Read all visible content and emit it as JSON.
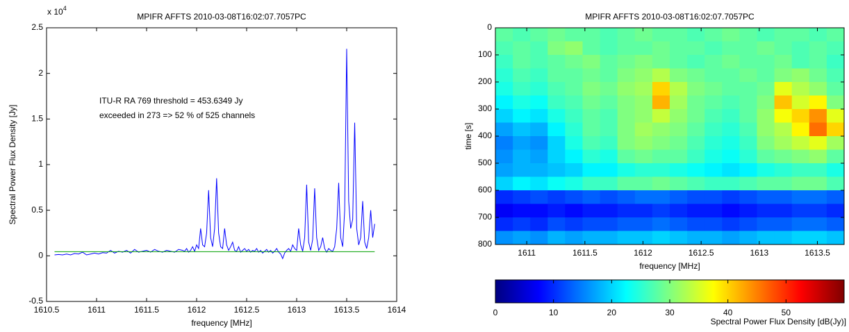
{
  "chart_data": [
    {
      "type": "line",
      "title": "MPIFR AFFTS 2010-03-08T16:02:07.7057PC",
      "xlabel": "frequency [MHz]",
      "ylabel": "Spectral Power Flux Density [Jy]",
      "y_multiplier": {
        "base": "x 10",
        "exponent": "4"
      },
      "annotations": [
        "ITU-R RA 769 threshold = 453.6349 Jy",
        "exceeded in 273 => 52 % of 525 channels"
      ],
      "xlim": [
        1610.5,
        1614
      ],
      "xticks": [
        1610.5,
        1611,
        1611.5,
        1612,
        1612.5,
        1613,
        1613.5,
        1614
      ],
      "ylim": [
        -0.5,
        2.5
      ],
      "yticks": [
        -0.5,
        0,
        0.5,
        1,
        1.5,
        2,
        2.5
      ],
      "series": [
        {
          "color": "#0000ff",
          "x": [
            1610.58,
            1610.62,
            1610.66,
            1610.7,
            1610.74,
            1610.78,
            1610.82,
            1610.86,
            1610.9,
            1610.94,
            1610.98,
            1611.02,
            1611.06,
            1611.1,
            1611.14,
            1611.18,
            1611.22,
            1611.26,
            1611.3,
            1611.34,
            1611.38,
            1611.42,
            1611.46,
            1611.5,
            1611.54,
            1611.58,
            1611.62,
            1611.66,
            1611.7,
            1611.74,
            1611.78,
            1611.82,
            1611.86,
            1611.88,
            1611.9,
            1611.92,
            1611.94,
            1611.96,
            1611.98,
            1612,
            1612.02,
            1612.04,
            1612.06,
            1612.08,
            1612.1,
            1612.12,
            1612.14,
            1612.16,
            1612.18,
            1612.2,
            1612.22,
            1612.24,
            1612.26,
            1612.28,
            1612.3,
            1612.32,
            1612.34,
            1612.36,
            1612.38,
            1612.4,
            1612.42,
            1612.44,
            1612.46,
            1612.48,
            1612.5,
            1612.52,
            1612.54,
            1612.56,
            1612.58,
            1612.6,
            1612.62,
            1612.64,
            1612.66,
            1612.68,
            1612.7,
            1612.72,
            1612.74,
            1612.76,
            1612.78,
            1612.8,
            1612.82,
            1612.84,
            1612.86,
            1612.88,
            1612.9,
            1612.92,
            1612.94,
            1612.96,
            1612.98,
            1613,
            1613.02,
            1613.04,
            1613.06,
            1613.08,
            1613.1,
            1613.12,
            1613.14,
            1613.16,
            1613.18,
            1613.2,
            1613.22,
            1613.24,
            1613.26,
            1613.28,
            1613.3,
            1613.32,
            1613.34,
            1613.36,
            1613.38,
            1613.4,
            1613.42,
            1613.44,
            1613.46,
            1613.48,
            1613.5,
            1613.52,
            1613.54,
            1613.56,
            1613.58,
            1613.6,
            1613.62,
            1613.64,
            1613.66,
            1613.68,
            1613.7,
            1613.72,
            1613.74,
            1613.76,
            1613.78
          ],
          "values": [
            0.01,
            0.015,
            0.01,
            0.02,
            0.01,
            0.025,
            0.02,
            0.04,
            0.01,
            0.02,
            0.03,
            0.02,
            0.035,
            0.03,
            0.06,
            0.03,
            0.05,
            0.04,
            0.06,
            0.03,
            0.07,
            0.04,
            0.05,
            0.06,
            0.04,
            0.07,
            0.05,
            0.04,
            0.06,
            0.05,
            0.04,
            0.07,
            0.06,
            0.05,
            0.08,
            0.04,
            0.06,
            0.1,
            0.05,
            0.12,
            0.08,
            0.3,
            0.12,
            0.1,
            0.25,
            0.72,
            0.2,
            0.1,
            0.3,
            0.85,
            0.25,
            0.1,
            0.08,
            0.3,
            0.12,
            0.06,
            0.1,
            0.15,
            0.06,
            0.05,
            0.1,
            0.04,
            0.06,
            0.08,
            0.05,
            0.07,
            0.04,
            0.06,
            0.05,
            0.08,
            0.04,
            0.06,
            0.03,
            0.05,
            0.07,
            0.04,
            0.06,
            0.03,
            0.05,
            0.08,
            0.04,
            0.02,
            -0.03,
            0.03,
            0.06,
            0.08,
            0.05,
            0.12,
            0.08,
            0.06,
            0.3,
            0.12,
            0.05,
            0.2,
            0.78,
            0.15,
            0.06,
            0.18,
            0.74,
            0.2,
            0.06,
            0.1,
            0.2,
            0.08,
            0.04,
            0.08,
            0.06,
            0.05,
            0.1,
            0.3,
            0.8,
            0.2,
            0.1,
            0.5,
            2.27,
            0.6,
            0.3,
            0.4,
            1.46,
            0.3,
            0.12,
            0.2,
            0.6,
            0.15,
            0.08,
            0.2,
            0.5,
            0.2,
            0.35
          ]
        },
        {
          "color": "#00a000",
          "x": [
            1610.58,
            1613.78
          ],
          "values": [
            0.04536349,
            0.04536349
          ]
        }
      ]
    },
    {
      "type": "heatmap",
      "title": "MPIFR AFFTS 2010-03-08T16:02:07.7057PC",
      "xlabel": "frequency [MHz]",
      "ylabel": "time [s]",
      "xlim": [
        1610.73,
        1613.73
      ],
      "xticks": [
        1611,
        1611.5,
        1612,
        1612.5,
        1613,
        1613.5
      ],
      "ylim": [
        0,
        800
      ],
      "y_reversed": true,
      "yticks": [
        0,
        100,
        200,
        300,
        400,
        500,
        600,
        700,
        800
      ],
      "x_edges": [
        1610.73,
        1610.88,
        1611.03,
        1611.18,
        1611.33,
        1611.48,
        1611.63,
        1611.78,
        1611.93,
        1612.08,
        1612.23,
        1612.38,
        1612.53,
        1612.68,
        1612.83,
        1612.98,
        1613.13,
        1613.28,
        1613.43,
        1613.58,
        1613.73
      ],
      "y_edges": [
        0,
        50,
        100,
        150,
        200,
        250,
        300,
        350,
        400,
        450,
        500,
        550,
        600,
        650,
        700,
        750,
        800
      ],
      "z": [
        [
          28,
          27,
          28,
          29,
          28,
          28,
          27,
          28,
          29,
          28,
          28,
          27,
          28,
          29,
          28,
          27,
          28,
          28,
          27,
          28
        ],
        [
          27,
          28,
          27,
          30,
          31,
          28,
          27,
          28,
          28,
          29,
          28,
          28,
          27,
          28,
          28,
          29,
          28,
          27,
          28,
          27
        ],
        [
          26,
          28,
          27,
          28,
          29,
          30,
          28,
          29,
          30,
          29,
          28,
          27,
          28,
          29,
          28,
          28,
          29,
          27,
          28,
          26
        ],
        [
          25,
          27,
          26,
          28,
          28,
          29,
          28,
          30,
          31,
          33,
          30,
          29,
          28,
          28,
          29,
          28,
          30,
          31,
          29,
          27
        ],
        [
          24,
          26,
          25,
          27,
          28,
          30,
          29,
          31,
          32,
          40,
          33,
          30,
          29,
          28,
          28,
          29,
          36,
          33,
          31,
          28
        ],
        [
          22,
          24,
          23,
          26,
          27,
          29,
          28,
          30,
          31,
          42,
          32,
          29,
          28,
          27,
          28,
          30,
          41,
          35,
          38,
          30
        ],
        [
          20,
          22,
          21,
          24,
          26,
          28,
          27,
          30,
          31,
          34,
          31,
          29,
          27,
          26,
          28,
          31,
          37,
          40,
          44,
          36
        ],
        [
          17,
          19,
          18,
          22,
          25,
          28,
          27,
          30,
          32,
          31,
          30,
          28,
          26,
          25,
          27,
          31,
          33,
          38,
          46,
          40
        ],
        [
          15,
          17,
          16,
          20,
          24,
          27,
          26,
          30,
          31,
          30,
          29,
          27,
          25,
          24,
          26,
          30,
          32,
          34,
          36,
          32
        ],
        [
          16,
          18,
          17,
          20,
          22,
          25,
          24,
          28,
          29,
          28,
          28,
          26,
          24,
          23,
          25,
          28,
          29,
          30,
          31,
          28
        ],
        [
          17,
          18,
          18,
          19,
          20,
          22,
          22,
          24,
          25,
          25,
          24,
          23,
          22,
          21,
          22,
          24,
          25,
          26,
          26,
          24
        ],
        [
          20,
          22,
          21,
          23,
          24,
          26,
          26,
          28,
          28,
          29,
          28,
          27,
          26,
          26,
          27,
          28,
          28,
          29,
          29,
          27
        ],
        [
          10,
          11,
          12,
          11,
          12,
          13,
          12,
          13,
          14,
          14,
          13,
          12,
          12,
          11,
          12,
          13,
          13,
          14,
          14,
          13
        ],
        [
          7,
          8,
          8,
          9,
          8,
          9,
          9,
          10,
          10,
          11,
          10,
          9,
          9,
          8,
          9,
          10,
          10,
          11,
          11,
          10
        ],
        [
          10,
          11,
          10,
          12,
          11,
          12,
          12,
          13,
          13,
          14,
          13,
          12,
          12,
          11,
          12,
          13,
          13,
          14,
          14,
          13
        ],
        [
          16,
          17,
          16,
          18,
          17,
          18,
          18,
          19,
          19,
          20,
          19,
          18,
          18,
          17,
          18,
          19,
          19,
          20,
          20,
          19
        ]
      ],
      "colorbar": {
        "label": "Spectral Power Flux Density [dB(Jy)]",
        "lim": [
          0,
          60
        ],
        "ticks": [
          0,
          10,
          20,
          30,
          40,
          50
        ]
      }
    }
  ]
}
